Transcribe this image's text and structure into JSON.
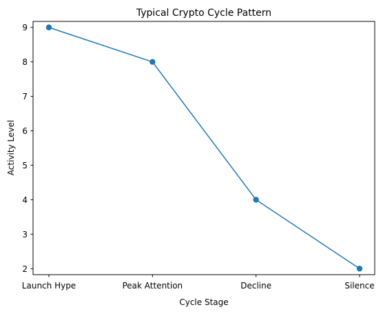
{
  "chart_data": {
    "type": "line",
    "title": "Typical Crypto Cycle Pattern",
    "xlabel": "Cycle Stage",
    "ylabel": "Activity Level",
    "categories": [
      "Launch Hype",
      "Peak Attention",
      "Decline",
      "Silence"
    ],
    "series": [
      {
        "values": [
          9,
          8,
          4,
          2
        ],
        "color": "#1f77b4",
        "marker": "circle"
      }
    ],
    "ylim": [
      1.825,
      9.175
    ],
    "yticks": [
      2,
      3,
      4,
      5,
      6,
      7,
      8,
      9
    ],
    "grid": false,
    "legend": "none"
  }
}
